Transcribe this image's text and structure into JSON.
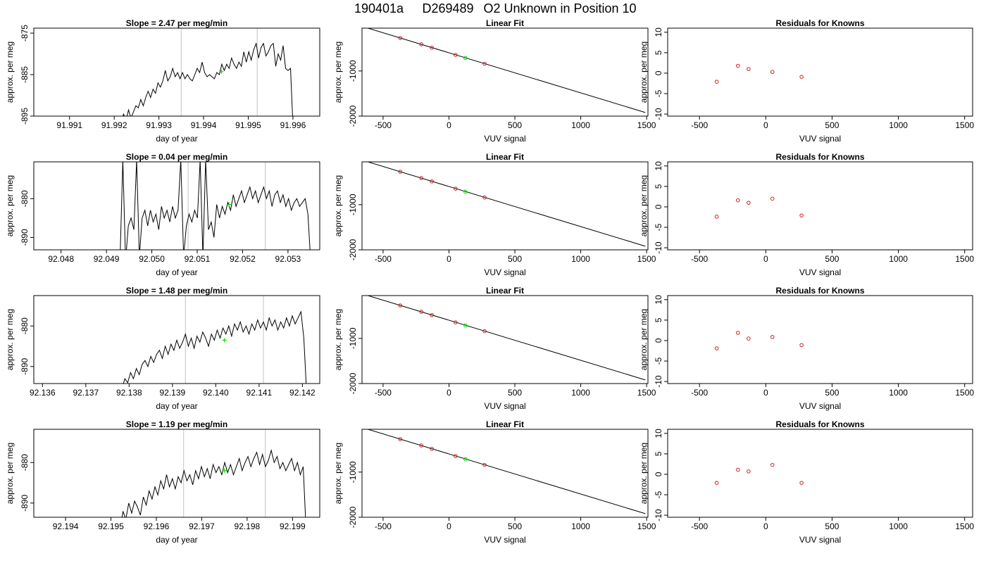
{
  "suptitle": {
    "run": "190401a",
    "sample": "D269489",
    "desc": "O2 Unknown in Position  10"
  },
  "chart_data": [
    {
      "type": "line",
      "title": "Slope =  2.47  per meg/min",
      "xlabel": "day of year",
      "ylabel": "approx. per meg",
      "xlim": [
        91.9902,
        91.9966
      ],
      "ylim": [
        -895,
        -873.8
      ],
      "xticks": [
        "91.991",
        "91.992",
        "91.993",
        "91.994",
        "91.995",
        "91.996"
      ],
      "yticks": [
        "-875",
        "-885",
        "-895"
      ],
      "vlines": [
        91.9935,
        91.9952
      ],
      "marker": {
        "x": 91.9944,
        "y": -884.3,
        "color": "#00dd00"
      },
      "series": [
        {
          "x0": 91.9921,
          "x1": 91.996,
          "y": [
            -897.0,
            -896.0,
            -894.5,
            -896.0,
            -893.5,
            -895.5,
            -894.0,
            -892.5,
            -893.0,
            -891.0,
            -892.5,
            -890.5,
            -889.0,
            -890.5,
            -888.5,
            -889.5,
            -887.0,
            -888.0,
            -886.5,
            -884.0,
            -886.5,
            -885.5,
            -883.5,
            -885.5,
            -884.5,
            -886.0,
            -884.5,
            -886.0,
            -885.0,
            -886.0,
            -886.5,
            -885.0,
            -883.5,
            -884.5,
            -882.0,
            -884.5,
            -885.5,
            -885.0,
            -885.5,
            -886.0,
            -884.5,
            -885.0,
            -882.5,
            -884.0,
            -882.5,
            -883.5,
            -881.0,
            -882.5,
            -883.5,
            -882.0,
            -883.0,
            -879.5,
            -882.0,
            -879.5,
            -881.5,
            -879.0,
            -877.5,
            -881.0,
            -878.5,
            -877.5,
            -880.5,
            -879.5,
            -878.0,
            -877.5,
            -883.0,
            -880.0,
            -881.5,
            -878.0,
            -883.5,
            -884.0,
            -883.5,
            -897.0
          ]
        }
      ],
      "series_color": "#000000"
    },
    {
      "type": "line",
      "title": "Linear Fit",
      "xlabel": "VUV signal",
      "ylabel": "approx. per meg",
      "xlim": [
        -660,
        1510
      ],
      "ylim": [
        -2000,
        -52
      ],
      "xticks": [
        -500,
        0,
        500,
        1000,
        1500
      ],
      "yticks": [
        -1000,
        -2000
      ],
      "fit_line": {
        "x": [
          -640,
          1490
        ],
        "y": [
          -30,
          -1920
        ]
      },
      "points": [
        {
          "x": -370,
          "y": -270,
          "color": "#cc2222"
        },
        {
          "x": -210,
          "y": -410,
          "color": "#cc2222"
        },
        {
          "x": -130,
          "y": -485,
          "color": "#cc2222"
        },
        {
          "x": 50,
          "y": -645,
          "color": "#cc2222"
        },
        {
          "x": 125,
          "y": -712,
          "color": "#00dd00"
        },
        {
          "x": 270,
          "y": -840,
          "color": "#cc2222"
        }
      ]
    },
    {
      "type": "scatter",
      "title": "Residuals for Knowns",
      "xlabel": "VUV signal",
      "ylabel": "approx. per meg",
      "xlim": [
        -740,
        1560
      ],
      "ylim": [
        -10.5,
        11
      ],
      "xticks": [
        -500,
        0,
        500,
        1000,
        1500
      ],
      "yticks": [
        10,
        5,
        0,
        -5,
        -10
      ],
      "x": [
        -370,
        -210,
        -130,
        50,
        270
      ],
      "y": [
        -2.1,
        1.8,
        1.0,
        0.3,
        -0.9
      ],
      "color": "#cc2222"
    },
    {
      "type": "line",
      "title": "Slope =  0.04  per meg/min",
      "xlabel": "day of year",
      "ylabel": "approx. per meg",
      "xlim": [
        92.0474,
        92.0537
      ],
      "ylim": [
        -893.2,
        -870.5
      ],
      "xticks": [
        "92.048",
        "92.049",
        "92.050",
        "92.051",
        "92.052",
        "92.053"
      ],
      "yticks": [
        "-880",
        "-890"
      ],
      "vlines": [
        92.0508,
        92.0525
      ],
      "marker": {
        "x": 92.0517,
        "y": -881.5,
        "color": "#00dd00"
      },
      "series": [
        {
          "x0": 92.0493,
          "x1": 92.0535,
          "y": [
            -896.0,
            -870.0,
            -896.0,
            -887.0,
            -885.0,
            -888.0,
            -870.0,
            -895.0,
            -885.0,
            -883.0,
            -887.0,
            -883.0,
            -886.0,
            -884.0,
            -888.0,
            -882.0,
            -885.0,
            -883.0,
            -886.0,
            -882.0,
            -885.0,
            -883.0,
            -870.0,
            -895.0,
            -887.0,
            -884.0,
            -886.0,
            -883.0,
            -885.0,
            -870.0,
            -895.0,
            -870.0,
            -888.0,
            -886.0,
            -890.0,
            -881.5,
            -885.0,
            -882.0,
            -884.0,
            -881.0,
            -883.0,
            -879.0,
            -882.0,
            -880.0,
            -878.0,
            -881.0,
            -879.0,
            -877.0,
            -880.0,
            -878.0,
            -881.0,
            -879.0,
            -877.0,
            -880.0,
            -878.0,
            -882.0,
            -879.0,
            -878.0,
            -881.0,
            -879.0,
            -882.0,
            -880.0,
            -883.0,
            -881.0,
            -880.0,
            -882.0,
            -881.0,
            -880.0,
            -884.0,
            -896.0
          ]
        }
      ],
      "series_color": "#000000"
    },
    {
      "type": "line",
      "title": "Linear Fit",
      "xlabel": "VUV signal",
      "ylabel": "approx. per meg",
      "xlim": [
        -660,
        1510
      ],
      "ylim": [
        -2000,
        -52
      ],
      "xticks": [
        -500,
        0,
        500,
        1000,
        1500
      ],
      "yticks": [
        -1000,
        -2000
      ],
      "fit_line": {
        "x": [
          -640,
          1490
        ],
        "y": [
          -30,
          -1920
        ]
      },
      "points": [
        {
          "x": -370,
          "y": -270,
          "color": "#cc2222"
        },
        {
          "x": -210,
          "y": -410,
          "color": "#cc2222"
        },
        {
          "x": -130,
          "y": -485,
          "color": "#cc2222"
        },
        {
          "x": 50,
          "y": -645,
          "color": "#cc2222"
        },
        {
          "x": 125,
          "y": -712,
          "color": "#00dd00"
        },
        {
          "x": 270,
          "y": -840,
          "color": "#cc2222"
        }
      ]
    },
    {
      "type": "scatter",
      "title": "Residuals for Knowns",
      "xlabel": "VUV signal",
      "ylabel": "approx. per meg",
      "xlim": [
        -740,
        1560
      ],
      "ylim": [
        -10.5,
        11
      ],
      "xticks": [
        -500,
        0,
        500,
        1000,
        1500
      ],
      "yticks": [
        10,
        5,
        0,
        -5,
        -10
      ],
      "x": [
        -370,
        -210,
        -130,
        50,
        270
      ],
      "y": [
        -2.4,
        1.6,
        1.0,
        2.0,
        -2.1
      ],
      "color": "#cc2222"
    },
    {
      "type": "line",
      "title": "Slope =  1.48  per meg/min",
      "xlabel": "day of year",
      "ylabel": "approx. per meg",
      "xlim": [
        92.1358,
        92.1424
      ],
      "ylim": [
        -894.2,
        -872.5
      ],
      "xticks": [
        "92.136",
        "92.137",
        "92.138",
        "92.139",
        "92.140",
        "92.141",
        "92.142"
      ],
      "yticks": [
        "-880",
        "-890"
      ],
      "vlines": [
        92.1393,
        92.1411
      ],
      "marker": {
        "x": 92.1402,
        "y": -883.5,
        "color": "#00dd00"
      },
      "series": [
        {
          "x0": 92.1377,
          "x1": 92.1421,
          "y": [
            -897.0,
            -894.5,
            -895.5,
            -893.0,
            -894.0,
            -891.5,
            -893.0,
            -890.5,
            -892.0,
            -889.5,
            -888.5,
            -890.0,
            -887.5,
            -889.0,
            -887.0,
            -886.0,
            -888.0,
            -885.0,
            -887.0,
            -884.5,
            -886.0,
            -883.5,
            -885.5,
            -884.0,
            -882.0,
            -885.0,
            -883.0,
            -885.5,
            -882.5,
            -884.0,
            -881.5,
            -883.0,
            -885.0,
            -882.0,
            -883.5,
            -881.0,
            -883.0,
            -880.5,
            -882.0,
            -880.0,
            -882.5,
            -879.5,
            -881.0,
            -879.0,
            -881.5,
            -880.0,
            -882.0,
            -879.5,
            -881.0,
            -878.5,
            -880.5,
            -879.0,
            -881.0,
            -878.0,
            -880.0,
            -878.5,
            -881.0,
            -879.0,
            -880.5,
            -878.0,
            -880.0,
            -877.5,
            -879.5,
            -878.0,
            -876.5,
            -883.0,
            -897.0
          ]
        }
      ],
      "series_color": "#000000"
    },
    {
      "type": "line",
      "title": "Linear Fit",
      "xlabel": "VUV signal",
      "ylabel": "approx. per meg",
      "xlim": [
        -660,
        1510
      ],
      "ylim": [
        -2000,
        -52
      ],
      "xticks": [
        -500,
        0,
        500,
        1000,
        1500
      ],
      "yticks": [
        -1000,
        -2000
      ],
      "fit_line": {
        "x": [
          -640,
          1490
        ],
        "y": [
          -30,
          -1920
        ]
      },
      "points": [
        {
          "x": -370,
          "y": -270,
          "color": "#cc2222"
        },
        {
          "x": -210,
          "y": -410,
          "color": "#cc2222"
        },
        {
          "x": -130,
          "y": -485,
          "color": "#cc2222"
        },
        {
          "x": 50,
          "y": -645,
          "color": "#cc2222"
        },
        {
          "x": 125,
          "y": -712,
          "color": "#00dd00"
        },
        {
          "x": 270,
          "y": -840,
          "color": "#cc2222"
        }
      ]
    },
    {
      "type": "scatter",
      "title": "Residuals for Knowns",
      "xlabel": "VUV signal",
      "ylabel": "approx. per meg",
      "xlim": [
        -740,
        1560
      ],
      "ylim": [
        -10.5,
        11
      ],
      "xticks": [
        -500,
        0,
        500,
        1000,
        1500
      ],
      "yticks": [
        10,
        5,
        0,
        -5,
        -10
      ],
      "x": [
        -370,
        -210,
        -130,
        50,
        270
      ],
      "y": [
        -1.9,
        1.9,
        0.5,
        0.9,
        -1.1
      ],
      "color": "#cc2222"
    },
    {
      "type": "line",
      "title": "Slope =  1.19  per meg/min",
      "xlabel": "day of year",
      "ylabel": "approx. per meg",
      "xlim": [
        92.1933,
        92.1996
      ],
      "ylim": [
        -893.5,
        -871.8
      ],
      "xticks": [
        "92.194",
        "92.195",
        "92.196",
        "92.197",
        "92.198",
        "92.199"
      ],
      "yticks": [
        "-880",
        "-890"
      ],
      "vlines": [
        92.1966,
        92.1984
      ],
      "marker": {
        "x": 92.1975,
        "y": -882.0,
        "color": "#00dd00"
      },
      "series": [
        {
          "x0": 92.1952,
          "x1": 92.1993,
          "y": [
            -897.0,
            -892.0,
            -894.0,
            -890.0,
            -892.5,
            -889.5,
            -891.0,
            -893.0,
            -888.5,
            -890.5,
            -887.0,
            -889.0,
            -886.0,
            -888.0,
            -884.5,
            -886.5,
            -883.0,
            -886.0,
            -884.0,
            -886.5,
            -883.5,
            -885.0,
            -882.0,
            -884.5,
            -883.0,
            -885.5,
            -882.0,
            -884.0,
            -881.0,
            -883.5,
            -881.5,
            -884.0,
            -880.5,
            -882.5,
            -881.0,
            -883.0,
            -880.0,
            -882.5,
            -880.5,
            -883.0,
            -881.0,
            -879.0,
            -882.0,
            -880.0,
            -878.5,
            -881.0,
            -879.0,
            -877.5,
            -880.5,
            -878.0,
            -881.0,
            -879.5,
            -877.0,
            -880.0,
            -878.5,
            -881.5,
            -880.0,
            -882.0,
            -880.5,
            -879.0,
            -882.0,
            -880.0,
            -883.0,
            -881.0,
            -897.0
          ]
        }
      ],
      "series_color": "#000000"
    },
    {
      "type": "line",
      "title": "Linear Fit",
      "xlabel": "VUV signal",
      "ylabel": "approx. per meg",
      "xlim": [
        -660,
        1510
      ],
      "ylim": [
        -2000,
        -52
      ],
      "xticks": [
        -500,
        0,
        500,
        1000,
        1500
      ],
      "yticks": [
        -1000,
        -2000
      ],
      "fit_line": {
        "x": [
          -640,
          1490
        ],
        "y": [
          -30,
          -1920
        ]
      },
      "points": [
        {
          "x": -370,
          "y": -270,
          "color": "#cc2222"
        },
        {
          "x": -210,
          "y": -410,
          "color": "#cc2222"
        },
        {
          "x": -130,
          "y": -485,
          "color": "#cc2222"
        },
        {
          "x": 50,
          "y": -645,
          "color": "#cc2222"
        },
        {
          "x": 125,
          "y": -712,
          "color": "#00dd00"
        },
        {
          "x": 270,
          "y": -840,
          "color": "#cc2222"
        }
      ]
    },
    {
      "type": "scatter",
      "title": "Residuals for Knowns",
      "xlabel": "VUV signal",
      "ylabel": "approx. per meg",
      "xlim": [
        -740,
        1560
      ],
      "ylim": [
        -10.5,
        11
      ],
      "xticks": [
        -500,
        0,
        500,
        1000,
        1500
      ],
      "yticks": [
        10,
        5,
        0,
        -5,
        -10
      ],
      "x": [
        -370,
        -210,
        -130,
        50,
        270
      ],
      "y": [
        -2.1,
        1.1,
        0.7,
        2.3,
        -2.1
      ],
      "color": "#cc2222"
    }
  ]
}
